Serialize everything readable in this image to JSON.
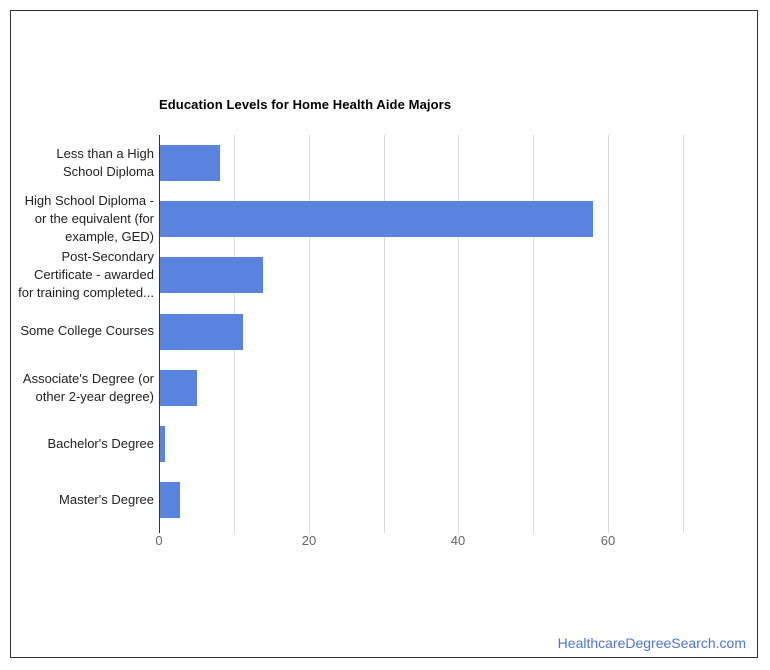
{
  "chart_data": {
    "type": "bar",
    "orientation": "horizontal",
    "title": "Education Levels for Home Health Aide Majors",
    "categories": [
      "Less than a High School Diploma",
      "High School Diploma - or the equivalent (for example, GED)",
      "Post-Secondary Certificate - awarded for training completed...",
      "Some College Courses",
      "Associate's Degree (or other 2-year degree)",
      "Bachelor's Degree",
      "Master's Degree"
    ],
    "category_lines": [
      [
        "Less than a High",
        "School Diploma"
      ],
      [
        "High School Diploma -",
        "or the equivalent (for",
        "example, GED)"
      ],
      [
        "Post-Secondary",
        "Certificate - awarded",
        "for training completed..."
      ],
      [
        "Some College Courses"
      ],
      [
        "Associate's Degree (or",
        "other 2-year degree)"
      ],
      [
        "Bachelor's Degree"
      ],
      [
        "Master's Degree"
      ]
    ],
    "values": [
      8,
      57.9,
      13.7,
      11.1,
      4.9,
      0.7,
      2.7
    ],
    "xlim": [
      0,
      70
    ],
    "x_ticks": [
      0,
      10,
      20,
      30,
      40,
      50,
      60,
      70
    ],
    "x_tick_labels": [
      {
        "value": 0,
        "label": "0"
      },
      {
        "value": 20,
        "label": "20"
      },
      {
        "value": 40,
        "label": "40"
      },
      {
        "value": 60,
        "label": "60"
      }
    ],
    "grid": true,
    "legend": "none",
    "bar_color": "#5a83de",
    "axis_line_color": "#333333",
    "gridline_color": "#d9d9d9",
    "category_label_color": "#222222",
    "tick_label_color": "#666666"
  },
  "footer": {
    "link_label": "HealthcareDegreeSearch.com",
    "link_color": "#4d74d8"
  }
}
